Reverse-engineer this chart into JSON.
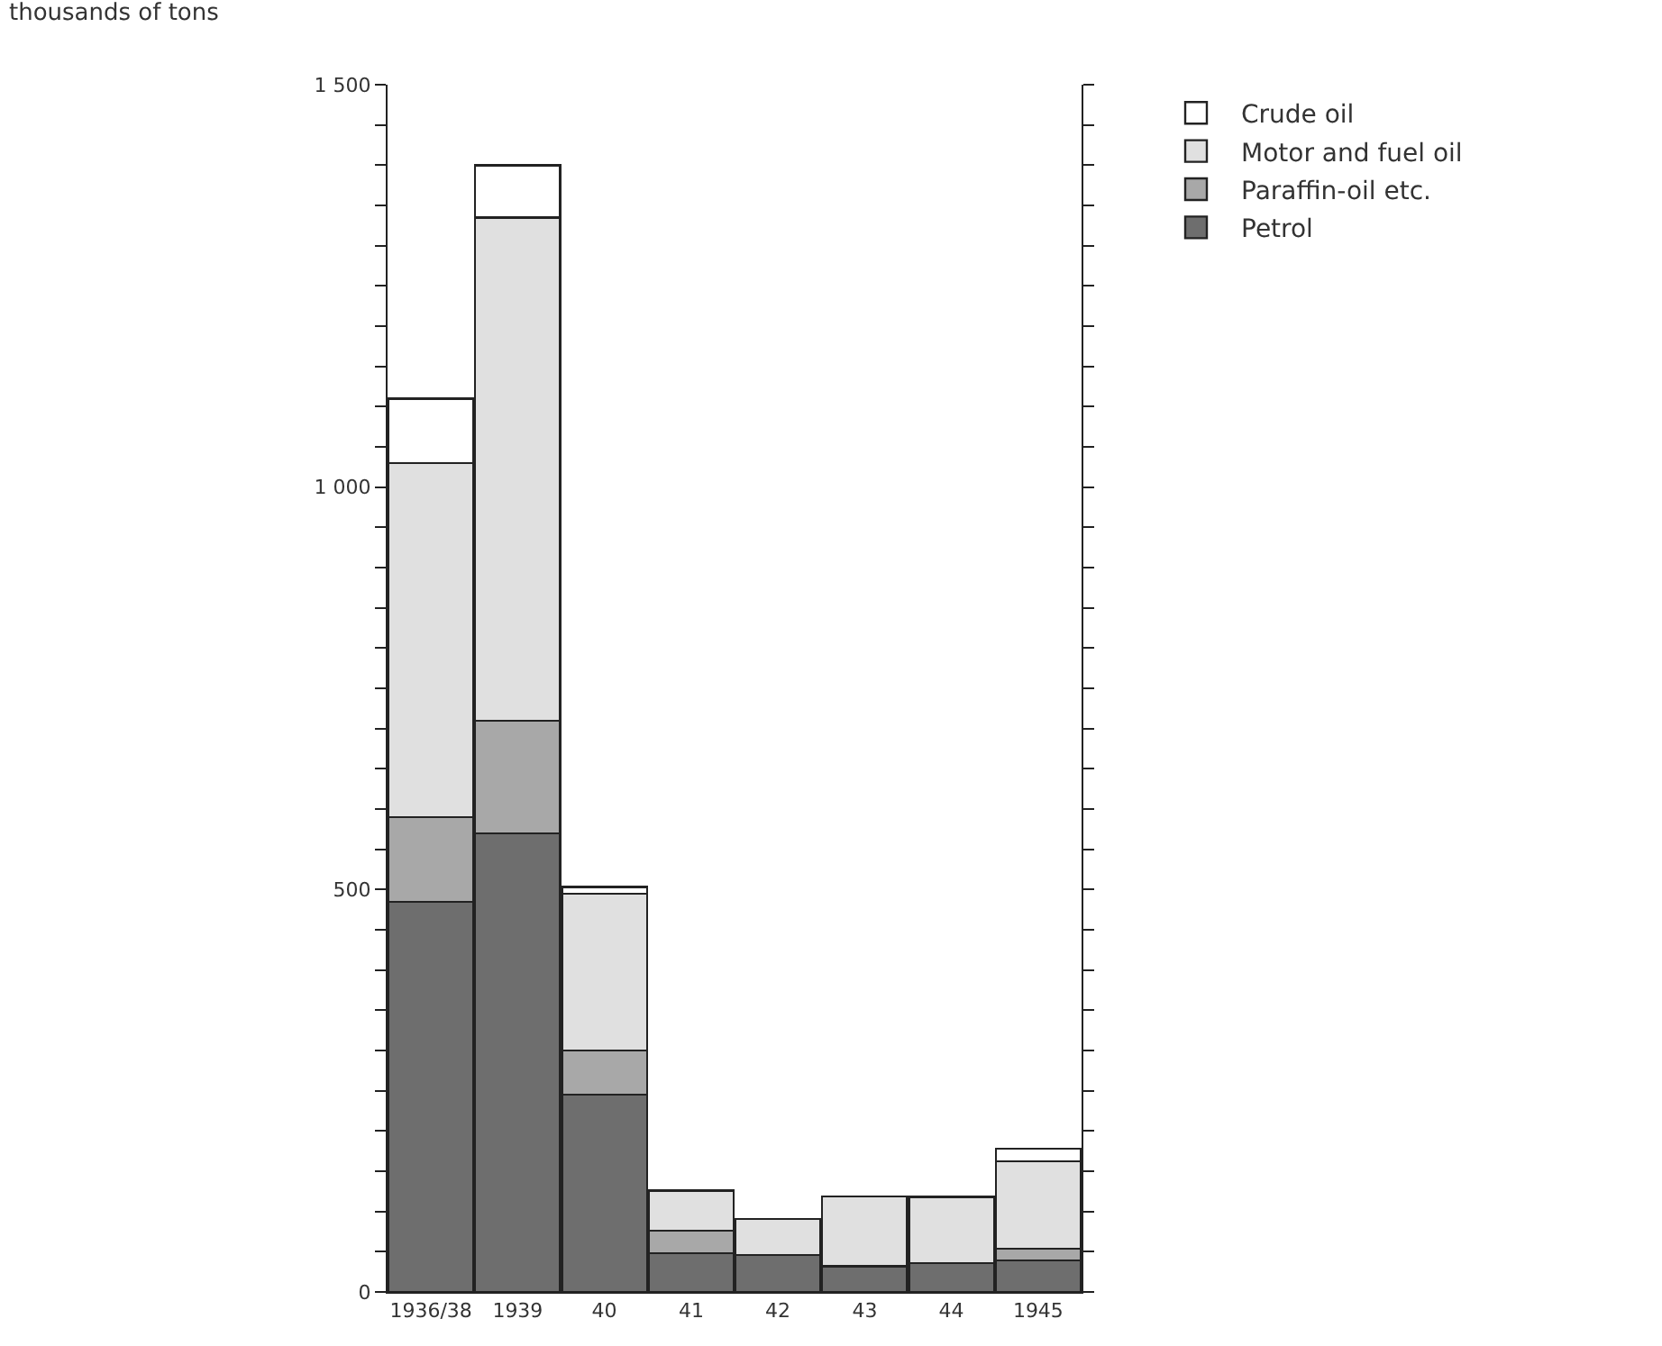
{
  "chart_data": {
    "type": "bar",
    "stacked": true,
    "ylabel": "thousands of tons",
    "categories": [
      "1936/38",
      "1939",
      "40",
      "41",
      "42",
      "43",
      "44",
      "1945"
    ],
    "series": [
      {
        "name": "Petrol",
        "color": "#6e6e6e",
        "values": [
          485,
          570,
          245,
          48,
          46,
          32,
          36,
          39
        ]
      },
      {
        "name": "Paraffin-oil etc.",
        "color": "#a8a8a8",
        "values": [
          105,
          140,
          55,
          28,
          null,
          null,
          null,
          15
        ]
      },
      {
        "name": "Motor and fuel oil",
        "color": "#e0e0e0",
        "values": [
          440,
          625,
          195,
          50,
          45,
          87,
          82,
          108
        ]
      },
      {
        "name": "Crude oil",
        "color": "#ffffff",
        "values": [
          80,
          65,
          8,
          null,
          null,
          null,
          null,
          16
        ]
      }
    ],
    "ylim": [
      0,
      1500
    ],
    "yticks": [
      0,
      {
        "value": 50,
        "label": null
      },
      {
        "value": 100,
        "label": null
      },
      {
        "value": 150,
        "label": null
      },
      {
        "value": 200,
        "label": null
      },
      {
        "value": 250,
        "label": null
      },
      {
        "value": 300,
        "label": null
      },
      {
        "value": 350,
        "label": null
      },
      {
        "value": 400,
        "label": null
      },
      {
        "value": 450,
        "label": null
      },
      500,
      {
        "value": 550,
        "label": null
      },
      {
        "value": 600,
        "label": null
      },
      {
        "value": 650,
        "label": null
      },
      {
        "value": 700,
        "label": null
      },
      {
        "value": 750,
        "label": null
      },
      {
        "value": 800,
        "label": null
      },
      {
        "value": 850,
        "label": null
      },
      {
        "value": 900,
        "label": null
      },
      {
        "value": 950,
        "label": null
      },
      {
        "value": 1000,
        "label": "1 000"
      },
      {
        "value": 1050,
        "label": null
      },
      {
        "value": 1100,
        "label": null
      },
      {
        "value": 1150,
        "label": null
      },
      {
        "value": 1200,
        "label": null
      },
      {
        "value": 1250,
        "label": null
      },
      {
        "value": 1300,
        "label": null
      },
      {
        "value": 1350,
        "label": null
      },
      {
        "value": 1400,
        "label": null
      },
      {
        "value": 1450,
        "label": null
      },
      {
        "value": 1500,
        "label": "1 500"
      }
    ],
    "grid": false,
    "legend": "top right"
  }
}
